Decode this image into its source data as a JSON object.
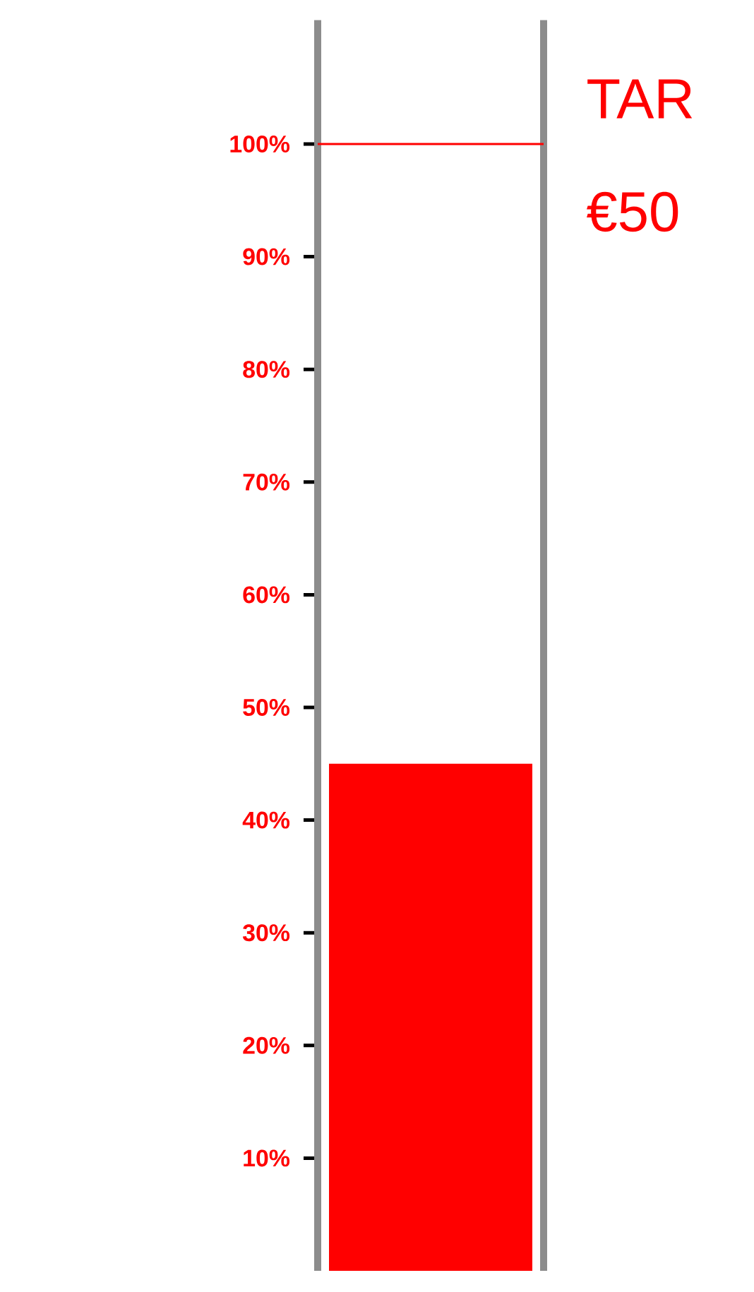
{
  "chart_data": {
    "type": "bar",
    "categories": [
      null
    ],
    "values": [
      45
    ],
    "color": "#ff0000",
    "ylim": [
      0,
      111
    ],
    "yticks": [
      {
        "value": 10,
        "label": "10%"
      },
      {
        "value": 20,
        "label": "20%"
      },
      {
        "value": 30,
        "label": "30%"
      },
      {
        "value": 40,
        "label": "40%"
      },
      {
        "value": 50,
        "label": "50%"
      },
      {
        "value": 60,
        "label": "60%"
      },
      {
        "value": 70,
        "label": "70%"
      },
      {
        "value": 80,
        "label": "80%"
      },
      {
        "value": 90,
        "label": "90%"
      },
      {
        "value": 100,
        "label": "100%"
      }
    ],
    "ref_lines": [
      {
        "axis": "y",
        "value": 100,
        "color": "#ff0000"
      }
    ],
    "annotations": [
      "TAR",
      "€50"
    ]
  }
}
